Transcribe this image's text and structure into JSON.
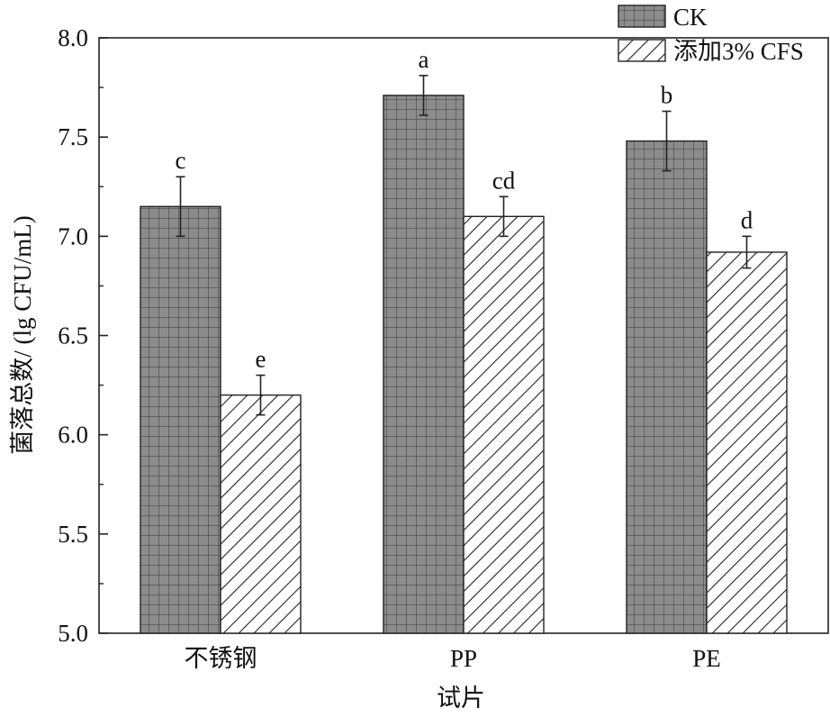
{
  "chart_data": {
    "type": "bar",
    "title": "",
    "xlabel": "试片",
    "ylabel": "菌落总数/ (lg CFU/mL)",
    "categories": [
      "不锈钢",
      "PP",
      "PE"
    ],
    "ylim": [
      5.0,
      8.0
    ],
    "yticks": [
      "5.0",
      "5.5",
      "6.0",
      "6.5",
      "7.0",
      "7.5",
      "8.0"
    ],
    "series": [
      {
        "name": "CK",
        "pattern": "grid",
        "fill": "#8a8a8a",
        "values": [
          7.15,
          7.71,
          7.48
        ],
        "errors": [
          0.15,
          0.1,
          0.15
        ],
        "labels": [
          "c",
          "a",
          "b"
        ]
      },
      {
        "name": "添加3% CFS",
        "pattern": "hatch",
        "fill": "#ffffff",
        "values": [
          6.2,
          7.1,
          6.92
        ],
        "errors": [
          0.1,
          0.1,
          0.08
        ],
        "labels": [
          "e",
          "cd",
          "d"
        ]
      }
    ],
    "grid": false,
    "legend_position": "top-right"
  }
}
